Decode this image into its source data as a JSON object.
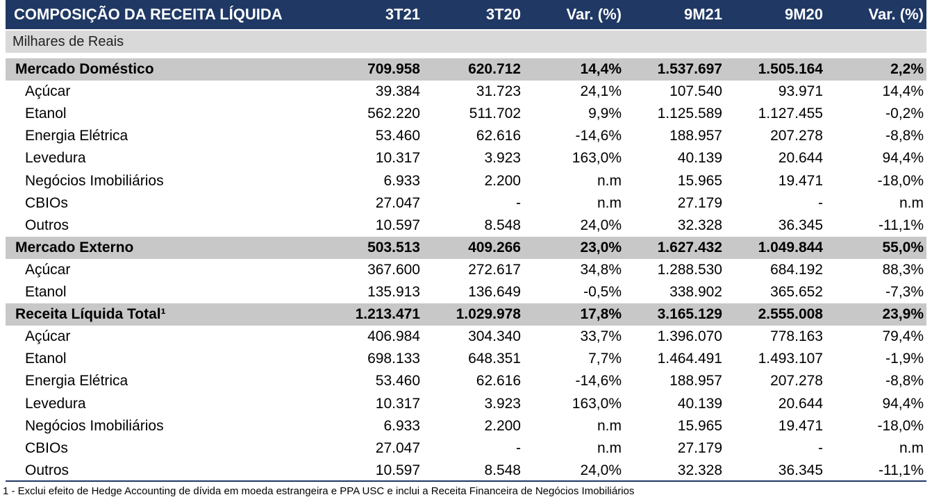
{
  "header": {
    "columns": [
      "COMPOSIÇÃO DA RECEITA LÍQUIDA",
      "3T21",
      "3T20",
      "Var. (%)",
      "9M21",
      "9M20",
      "Var. (%)"
    ]
  },
  "unit": "Milhares de Reais",
  "sections": [
    {
      "name": "Mercado Doméstico",
      "values": [
        "709.958",
        "620.712",
        "14,4%",
        "1.537.697",
        "1.505.164",
        "2,2%"
      ],
      "items": [
        {
          "label": "Açúcar",
          "values": [
            "39.384",
            "31.723",
            "24,1%",
            "107.540",
            "93.971",
            "14,4%"
          ]
        },
        {
          "label": "Etanol",
          "values": [
            "562.220",
            "511.702",
            "9,9%",
            "1.125.589",
            "1.127.455",
            "-0,2%"
          ]
        },
        {
          "label": "Energia Elétrica",
          "values": [
            "53.460",
            "62.616",
            "-14,6%",
            "188.957",
            "207.278",
            "-8,8%"
          ]
        },
        {
          "label": "Levedura",
          "values": [
            "10.317",
            "3.923",
            "163,0%",
            "40.139",
            "20.644",
            "94,4%"
          ]
        },
        {
          "label": "Negócios Imobiliários",
          "values": [
            "6.933",
            "2.200",
            "n.m",
            "15.965",
            "19.471",
            "-18,0%"
          ]
        },
        {
          "label": "CBIOs",
          "values": [
            "27.047",
            "-",
            "n.m",
            "27.179",
            "-",
            "n.m"
          ]
        },
        {
          "label": "Outros",
          "values": [
            "10.597",
            "8.548",
            "24,0%",
            "32.328",
            "36.345",
            "-11,1%"
          ]
        }
      ]
    },
    {
      "name": "Mercado Externo",
      "values": [
        "503.513",
        "409.266",
        "23,0%",
        "1.627.432",
        "1.049.844",
        "55,0%"
      ],
      "items": [
        {
          "label": "Açúcar",
          "values": [
            "367.600",
            "272.617",
            "34,8%",
            "1.288.530",
            "684.192",
            "88,3%"
          ]
        },
        {
          "label": "Etanol",
          "values": [
            "135.913",
            "136.649",
            "-0,5%",
            "338.902",
            "365.652",
            "-7,3%"
          ]
        }
      ]
    },
    {
      "name": "Receita Líquida Total¹",
      "values": [
        "1.213.471",
        "1.029.978",
        "17,8%",
        "3.165.129",
        "2.555.008",
        "23,9%"
      ],
      "items": [
        {
          "label": "Açúcar",
          "values": [
            "406.984",
            "304.340",
            "33,7%",
            "1.396.070",
            "778.163",
            "79,4%"
          ]
        },
        {
          "label": "Etanol",
          "values": [
            "698.133",
            "648.351",
            "7,7%",
            "1.464.491",
            "1.493.107",
            "-1,9%"
          ]
        },
        {
          "label": "Energia Elétrica",
          "values": [
            "53.460",
            "62.616",
            "-14,6%",
            "188.957",
            "207.278",
            "-8,8%"
          ]
        },
        {
          "label": "Levedura",
          "values": [
            "10.317",
            "3.923",
            "163,0%",
            "40.139",
            "20.644",
            "94,4%"
          ]
        },
        {
          "label": "Negócios Imobiliários",
          "values": [
            "6.933",
            "2.200",
            "n.m",
            "15.965",
            "19.471",
            "-18,0%"
          ]
        },
        {
          "label": "CBIOs",
          "values": [
            "27.047",
            "-",
            "n.m",
            "27.179",
            "-",
            "n.m"
          ]
        },
        {
          "label": "Outros",
          "values": [
            "10.597",
            "8.548",
            "24,0%",
            "32.328",
            "36.345",
            "-11,1%"
          ]
        }
      ]
    }
  ],
  "footnote": "1 - Exclui efeito de Hedge Accounting de dívida em moeda estrangeira e PPA USC e inclui a Receita Financeira de Negócios Imobiliários"
}
